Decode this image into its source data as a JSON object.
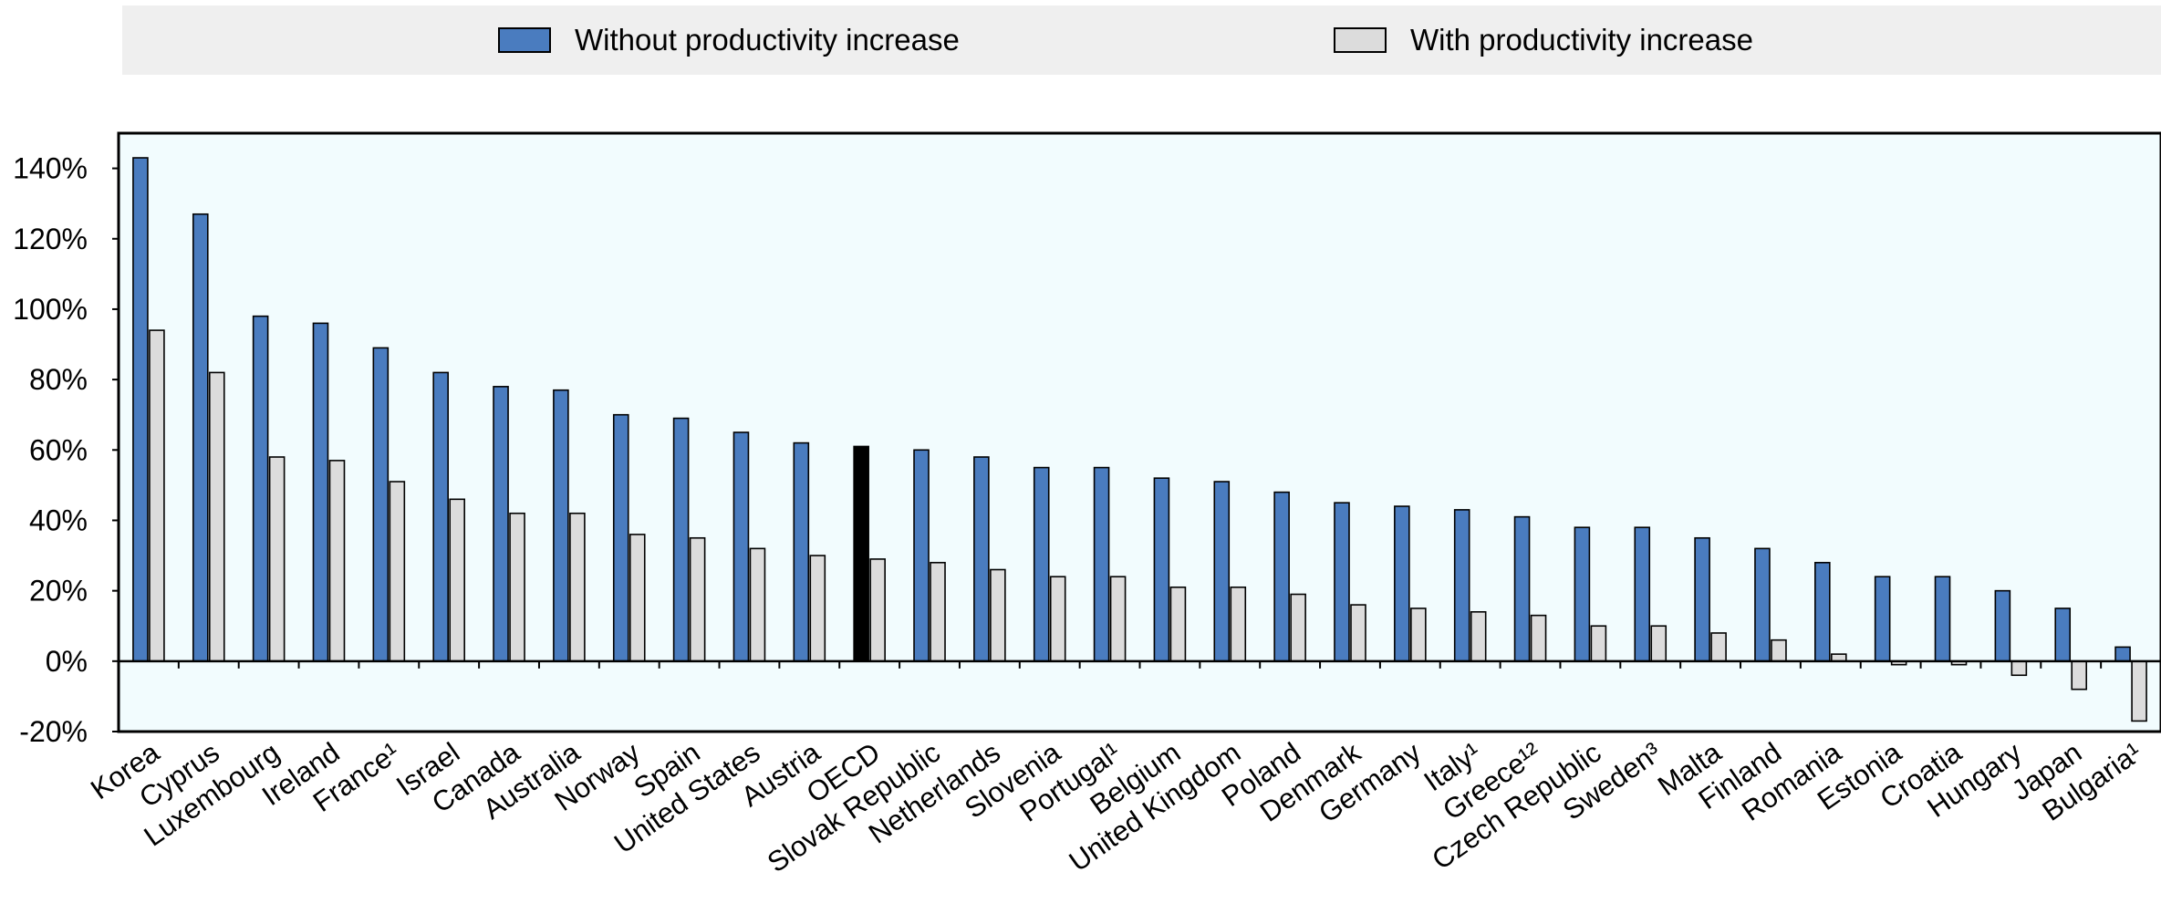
{
  "legend": {
    "items": [
      {
        "label": "Without productivity increase",
        "color": "#4a7cbf"
      },
      {
        "label": "With productivity increase",
        "color": "#dcdcdc"
      }
    ]
  },
  "chart_data": {
    "type": "bar",
    "categories": [
      "Korea",
      "Cyprus",
      "Luxembourg",
      "Ireland",
      "France¹",
      "Israel",
      "Canada",
      "Australia",
      "Norway",
      "Spain",
      "United States",
      "Austria",
      "OECD",
      "Slovak Republic",
      "Netherlands",
      "Slovenia",
      "Portugal¹",
      "Belgium",
      "United Kingdom",
      "Poland",
      "Denmark",
      "Germany",
      "Italy¹",
      "Greece¹²",
      "Czech Republic",
      "Sweden³",
      "Malta",
      "Finland",
      "Romania",
      "Estonia",
      "Croatia",
      "Hungary",
      "Japan",
      "Bulgaria¹"
    ],
    "series": [
      {
        "name": "Without productivity increase",
        "color": "#4a7cbf",
        "highlight_color": "#000000",
        "highlight_category": "OECD",
        "values": [
          143,
          127,
          98,
          96,
          89,
          82,
          78,
          77,
          70,
          69,
          65,
          62,
          61,
          60,
          58,
          55,
          55,
          52,
          51,
          48,
          45,
          44,
          43,
          41,
          38,
          38,
          35,
          32,
          28,
          24,
          24,
          20,
          15,
          4
        ]
      },
      {
        "name": "With productivity increase",
        "color": "#dcdcdc",
        "values": [
          94,
          82,
          58,
          57,
          51,
          46,
          42,
          42,
          36,
          35,
          32,
          30,
          29,
          28,
          26,
          24,
          24,
          21,
          21,
          19,
          16,
          15,
          14,
          13,
          10,
          10,
          8,
          6,
          2,
          -1,
          -1,
          -4,
          -8,
          -17
        ]
      }
    ],
    "ylim": [
      -20,
      150
    ],
    "yticks": [
      -20,
      0,
      20,
      40,
      60,
      80,
      100,
      120,
      140
    ],
    "ytick_labels": [
      "-20%",
      "0%",
      "20%",
      "40%",
      "60%",
      "80%",
      "100%",
      "120%",
      "140%"
    ],
    "grid": false,
    "background_color": "#f2fcfe",
    "legend_position": "top",
    "xlabel": "",
    "ylabel": "",
    "title": ""
  }
}
